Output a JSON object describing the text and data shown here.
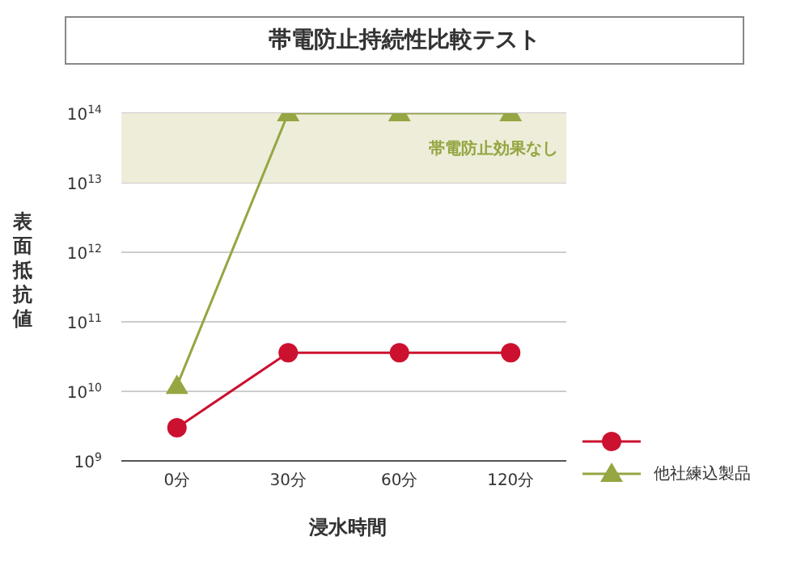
{
  "chart_data": {
    "type": "line",
    "title": "帯電防止持続性比較テスト",
    "xlabel": "浸水時間",
    "ylabel": "表面抵抗値",
    "categories": [
      "0分",
      "30分",
      "60分",
      "120分"
    ],
    "series": [
      {
        "color": "#cc1130",
        "marker": "circle",
        "values": [
          3000000000.0,
          36000000000.0,
          36000000000.0,
          36000000000.0
        ]
      },
      {
        "name": "他社練込製品",
        "color": "#95a642",
        "marker": "triangle",
        "values": [
          12000000000.0,
          100000000000000.0,
          100000000000000.0,
          100000000000000.0
        ]
      }
    ],
    "log": true,
    "ylim": [
      1000000000.0,
      100000000000000.0
    ],
    "yticks": [
      {
        "value": 1000000000.0,
        "label": "10$^{9}$"
      },
      {
        "value": 10000000000.0,
        "label": "10$^{10}$"
      },
      {
        "value": 100000000000.0,
        "label": "10$^{11}$"
      },
      {
        "value": 1000000000000.0,
        "label": "10$^{12}$"
      },
      {
        "value": 10000000000000.0,
        "label": "10$^{13}$"
      },
      {
        "value": 100000000000000.0,
        "label": "10$^{14}$"
      }
    ],
    "grid": "y",
    "legend": "right",
    "bands": [
      {
        "axis": "y",
        "from": 10000000000000.0,
        "to": 100000000000000.0,
        "label": "帯電防止効果なし",
        "color": "#eeedd9"
      }
    ]
  }
}
